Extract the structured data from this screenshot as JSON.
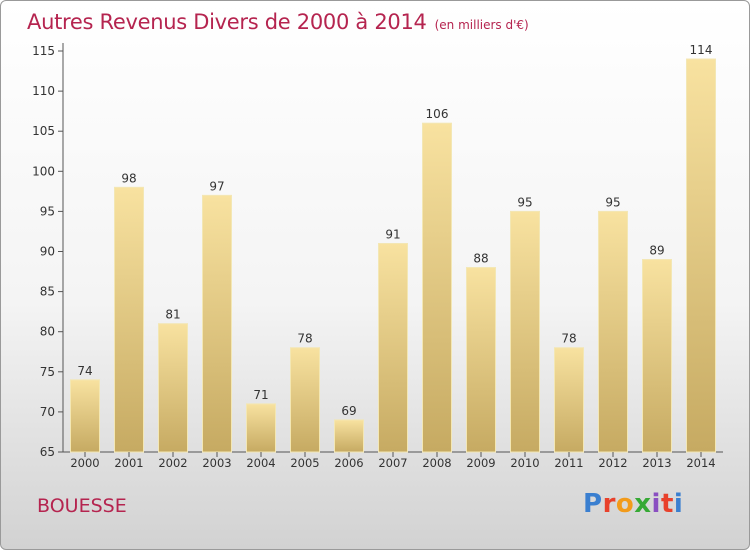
{
  "title": "Autres Revenus Divers de 2000 à 2014",
  "unit": "(en milliers d'€)",
  "commune": "BOUESSE",
  "logo": {
    "text": "Proxiti",
    "colors": [
      "#3a7fd0",
      "#e8412b",
      "#f29b1b",
      "#36a935",
      "#8a4fc1",
      "#e8412b",
      "#3a7fd0"
    ]
  },
  "colors": {
    "title": "#b5244f",
    "bar_light": "#f8e2a0",
    "bar_dark": "#c6aa62",
    "bar_edge": "#f3e7b4",
    "axis": "#555555",
    "text": "#333333"
  },
  "chart_data": {
    "type": "bar",
    "categories": [
      "2000",
      "2001",
      "2002",
      "2003",
      "2004",
      "2005",
      "2006",
      "2007",
      "2008",
      "2009",
      "2010",
      "2011",
      "2012",
      "2013",
      "2014"
    ],
    "values": [
      74,
      98,
      81,
      97,
      71,
      78,
      69,
      91,
      106,
      88,
      95,
      78,
      95,
      89,
      114
    ],
    "ylim": [
      65,
      115
    ],
    "yticks": [
      65,
      70,
      75,
      80,
      85,
      90,
      95,
      100,
      105,
      110,
      115
    ],
    "grid": false,
    "data_labels": true
  }
}
